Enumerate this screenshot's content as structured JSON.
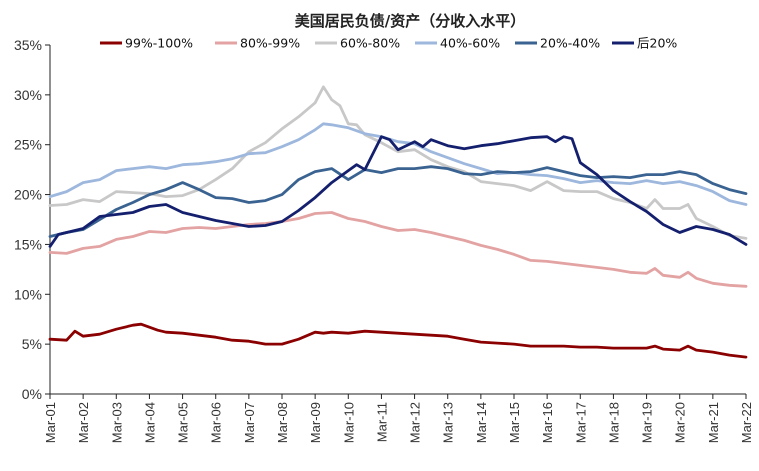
{
  "chart_data": {
    "type": "line",
    "title": "美国居民负债/资产（分收入水平）",
    "xlabel": "",
    "ylabel": "",
    "ylim": [
      0,
      35
    ],
    "yticks": [
      "0%",
      "5%",
      "10%",
      "15%",
      "20%",
      "25%",
      "30%",
      "35%"
    ],
    "ytick_values": [
      0,
      5,
      10,
      15,
      20,
      25,
      30,
      35
    ],
    "x_range": [
      2001.0,
      2022.0
    ],
    "xticks": [
      "Mar-01",
      "Mar-02",
      "Mar-03",
      "Mar-04",
      "Mar-05",
      "Mar-06",
      "Mar-07",
      "Mar-08",
      "Mar-09",
      "Mar-10",
      "Mar-11",
      "Mar-12",
      "Mar-13",
      "Mar-14",
      "Mar-15",
      "Mar-16",
      "Mar-17",
      "Mar-18",
      "Mar-19",
      "Mar-20",
      "Mar-21",
      "Mar-22"
    ],
    "legend_placement": "top",
    "grid": false,
    "series": [
      {
        "name": "99%-100%",
        "color": "#8B0000",
        "x": [
          2001.0,
          2001.5,
          2001.75,
          2002.0,
          2002.5,
          2003.0,
          2003.5,
          2003.75,
          2004.0,
          2004.25,
          2004.5,
          2005.0,
          2005.5,
          2006.0,
          2006.5,
          2007.0,
          2007.5,
          2008.0,
          2008.5,
          2009.0,
          2009.25,
          2009.5,
          2010.0,
          2010.5,
          2011.0,
          2011.5,
          2012.0,
          2012.5,
          2013.0,
          2013.5,
          2014.0,
          2014.5,
          2015.0,
          2015.5,
          2016.0,
          2016.5,
          2017.0,
          2017.5,
          2018.0,
          2018.5,
          2019.0,
          2019.25,
          2019.5,
          2020.0,
          2020.25,
          2020.5,
          2021.0,
          2021.5,
          2022.0
        ],
        "values": [
          5.5,
          5.4,
          6.3,
          5.8,
          6.0,
          6.5,
          6.9,
          7.0,
          6.7,
          6.4,
          6.2,
          6.1,
          5.9,
          5.7,
          5.4,
          5.3,
          5.0,
          5.0,
          5.5,
          6.2,
          6.1,
          6.2,
          6.1,
          6.3,
          6.2,
          6.1,
          6.0,
          5.9,
          5.8,
          5.5,
          5.2,
          5.1,
          5.0,
          4.8,
          4.8,
          4.8,
          4.7,
          4.7,
          4.6,
          4.6,
          4.6,
          4.8,
          4.5,
          4.4,
          4.8,
          4.4,
          4.2,
          3.9,
          3.7
        ]
      },
      {
        "name": "80%-99%",
        "color": "#E3A3A3",
        "x": [
          2001.0,
          2001.5,
          2002.0,
          2002.5,
          2003.0,
          2003.5,
          2004.0,
          2004.5,
          2005.0,
          2005.5,
          2006.0,
          2006.5,
          2007.0,
          2007.5,
          2008.0,
          2008.5,
          2009.0,
          2009.5,
          2010.0,
          2010.5,
          2011.0,
          2011.5,
          2012.0,
          2012.5,
          2013.0,
          2013.5,
          2014.0,
          2014.5,
          2015.0,
          2015.5,
          2016.0,
          2016.5,
          2017.0,
          2017.5,
          2018.0,
          2018.5,
          2019.0,
          2019.25,
          2019.5,
          2020.0,
          2020.25,
          2020.5,
          2021.0,
          2021.5,
          2022.0
        ],
        "values": [
          14.2,
          14.1,
          14.6,
          14.8,
          15.5,
          15.8,
          16.3,
          16.2,
          16.6,
          16.7,
          16.6,
          16.8,
          17.0,
          17.1,
          17.3,
          17.6,
          18.1,
          18.2,
          17.6,
          17.3,
          16.8,
          16.4,
          16.5,
          16.2,
          15.8,
          15.4,
          14.9,
          14.5,
          14.0,
          13.4,
          13.3,
          13.1,
          12.9,
          12.7,
          12.5,
          12.2,
          12.1,
          12.6,
          11.9,
          11.7,
          12.2,
          11.6,
          11.1,
          10.9,
          10.8
        ]
      },
      {
        "name": "60%-80%",
        "color": "#C8C8C8",
        "x": [
          2001.0,
          2001.5,
          2002.0,
          2002.5,
          2003.0,
          2003.5,
          2004.0,
          2004.5,
          2005.0,
          2005.5,
          2006.0,
          2006.5,
          2007.0,
          2007.5,
          2008.0,
          2008.5,
          2009.0,
          2009.25,
          2009.5,
          2009.75,
          2010.0,
          2010.25,
          2010.5,
          2011.0,
          2011.5,
          2012.0,
          2012.5,
          2013.0,
          2013.5,
          2014.0,
          2014.5,
          2015.0,
          2015.5,
          2016.0,
          2016.5,
          2017.0,
          2017.5,
          2018.0,
          2018.5,
          2019.0,
          2019.25,
          2019.5,
          2020.0,
          2020.25,
          2020.5,
          2021.0,
          2021.5,
          2022.0
        ],
        "values": [
          18.9,
          19.0,
          19.5,
          19.3,
          20.3,
          20.2,
          20.1,
          19.8,
          19.9,
          20.5,
          21.5,
          22.6,
          24.3,
          25.2,
          26.6,
          27.8,
          29.2,
          30.8,
          29.5,
          28.9,
          27.1,
          27.0,
          26.0,
          25.2,
          24.3,
          24.5,
          23.5,
          22.8,
          22.3,
          21.3,
          21.1,
          20.9,
          20.4,
          21.3,
          20.4,
          20.3,
          20.3,
          19.6,
          19.2,
          18.6,
          19.5,
          18.6,
          18.6,
          19.0,
          17.6,
          16.8,
          15.9,
          15.6
        ]
      },
      {
        "name": "40%-60%",
        "color": "#9DB7DD",
        "x": [
          2001.0,
          2001.5,
          2002.0,
          2002.5,
          2003.0,
          2003.5,
          2004.0,
          2004.5,
          2005.0,
          2005.5,
          2006.0,
          2006.5,
          2007.0,
          2007.5,
          2008.0,
          2008.5,
          2009.0,
          2009.25,
          2009.5,
          2010.0,
          2010.5,
          2011.0,
          2011.5,
          2012.0,
          2012.5,
          2013.0,
          2013.5,
          2014.0,
          2014.5,
          2015.0,
          2015.5,
          2016.0,
          2016.5,
          2017.0,
          2017.5,
          2018.0,
          2018.5,
          2019.0,
          2019.5,
          2020.0,
          2020.5,
          2021.0,
          2021.5,
          2022.0
        ],
        "values": [
          19.8,
          20.3,
          21.2,
          21.5,
          22.4,
          22.6,
          22.8,
          22.6,
          23.0,
          23.1,
          23.3,
          23.6,
          24.1,
          24.2,
          24.8,
          25.5,
          26.5,
          27.1,
          27.0,
          26.7,
          26.1,
          25.8,
          25.3,
          25.1,
          24.3,
          23.7,
          23.1,
          22.6,
          22.1,
          22.2,
          22.0,
          21.9,
          21.6,
          21.2,
          21.4,
          21.2,
          21.1,
          21.4,
          21.1,
          21.3,
          20.9,
          20.3,
          19.4,
          19.0
        ]
      },
      {
        "name": "20%-40%",
        "color": "#3A6391",
        "x": [
          2001.0,
          2001.5,
          2002.0,
          2002.5,
          2003.0,
          2003.5,
          2004.0,
          2004.5,
          2005.0,
          2005.5,
          2006.0,
          2006.5,
          2007.0,
          2007.5,
          2008.0,
          2008.5,
          2009.0,
          2009.5,
          2010.0,
          2010.5,
          2011.0,
          2011.5,
          2012.0,
          2012.5,
          2013.0,
          2013.5,
          2014.0,
          2014.5,
          2015.0,
          2015.5,
          2016.0,
          2016.5,
          2017.0,
          2017.5,
          2018.0,
          2018.5,
          2019.0,
          2019.5,
          2020.0,
          2020.5,
          2021.0,
          2021.5,
          2022.0
        ],
        "values": [
          15.8,
          16.2,
          16.5,
          17.5,
          18.5,
          19.2,
          20.0,
          20.5,
          21.2,
          20.5,
          19.7,
          19.6,
          19.2,
          19.4,
          20.0,
          21.5,
          22.3,
          22.6,
          21.5,
          22.5,
          22.2,
          22.6,
          22.6,
          22.8,
          22.6,
          22.1,
          22.0,
          22.3,
          22.2,
          22.3,
          22.7,
          22.3,
          21.9,
          21.7,
          21.8,
          21.7,
          22.0,
          22.0,
          22.3,
          22.0,
          21.1,
          20.5,
          20.1
        ]
      },
      {
        "name": "后20%",
        "color": "#14206E",
        "x": [
          2001.0,
          2001.25,
          2001.5,
          2002.0,
          2002.5,
          2003.0,
          2003.5,
          2004.0,
          2004.5,
          2005.0,
          2005.5,
          2006.0,
          2006.5,
          2007.0,
          2007.5,
          2008.0,
          2008.5,
          2009.0,
          2009.5,
          2010.0,
          2010.25,
          2010.5,
          2011.0,
          2011.25,
          2011.5,
          2012.0,
          2012.25,
          2012.5,
          2013.0,
          2013.5,
          2014.0,
          2014.5,
          2015.0,
          2015.5,
          2016.0,
          2016.25,
          2016.5,
          2016.75,
          2017.0,
          2017.5,
          2018.0,
          2018.5,
          2019.0,
          2019.5,
          2020.0,
          2020.5,
          2021.0,
          2021.5,
          2022.0
        ],
        "values": [
          14.8,
          16.0,
          16.2,
          16.6,
          17.8,
          18.0,
          18.2,
          18.8,
          19.0,
          18.2,
          17.8,
          17.4,
          17.1,
          16.8,
          16.9,
          17.3,
          18.4,
          19.7,
          21.2,
          22.4,
          23.0,
          22.5,
          25.8,
          25.5,
          24.5,
          25.3,
          24.8,
          25.5,
          24.9,
          24.6,
          24.9,
          25.1,
          25.4,
          25.7,
          25.8,
          25.3,
          25.8,
          25.6,
          23.2,
          22.0,
          20.4,
          19.3,
          18.3,
          17.0,
          16.2,
          16.8,
          16.5,
          16.0,
          15.0
        ]
      }
    ]
  }
}
